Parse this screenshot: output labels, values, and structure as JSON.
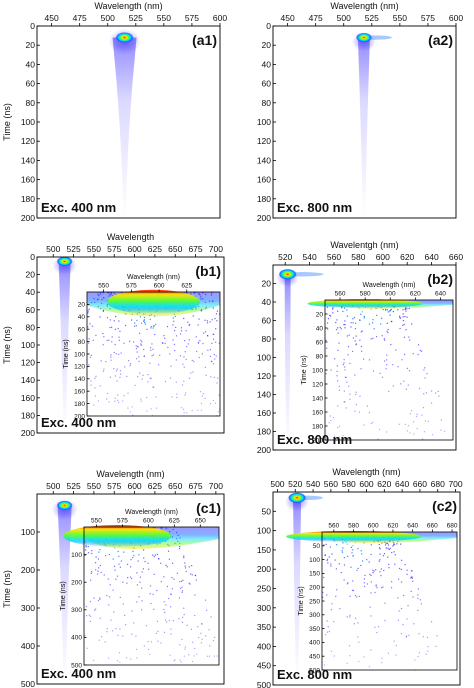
{
  "chart_data": [
    {
      "panel": "a1",
      "type": "heatmap",
      "xlabel": "Wavelength (nm)",
      "ylabel": "Time (ns)",
      "xticks": [
        450,
        475,
        500,
        525,
        550,
        575,
        600
      ],
      "xlim": [
        437,
        600
      ],
      "yticks": [
        0,
        20,
        40,
        60,
        80,
        100,
        120,
        140,
        160,
        180,
        200
      ],
      "ylim": [
        0,
        200
      ],
      "yinvert": true,
      "label": "(a1)",
      "excitation": "Exc. 400 nm",
      "peak": {
        "wavelength": 515,
        "time": 12
      },
      "tail_to_time": 200
    },
    {
      "panel": "a2",
      "type": "heatmap",
      "xlabel": "Wavelength (nm)",
      "ylabel": "",
      "xticks": [
        450,
        475,
        500,
        525,
        550,
        575,
        600
      ],
      "xlim": [
        437,
        600
      ],
      "yticks": [
        0,
        20,
        40,
        60,
        80,
        100,
        120,
        140,
        160,
        180,
        200
      ],
      "ylim": [
        0,
        200
      ],
      "yinvert": true,
      "label": "(a2)",
      "excitation": "Exc. 800 nm",
      "peak": {
        "wavelength": 518,
        "time": 12
      },
      "tail_to_time": 200
    },
    {
      "panel": "b1",
      "type": "heatmap",
      "xlabel": "Wavelength",
      "ylabel": "Time (ns)",
      "xticks": [
        500,
        525,
        550,
        575,
        600,
        625,
        650,
        675,
        700
      ],
      "xlim": [
        480,
        710
      ],
      "yticks": [
        0,
        20,
        40,
        60,
        80,
        100,
        120,
        140,
        160,
        180,
        200
      ],
      "ylim": [
        0,
        200
      ],
      "yinvert": true,
      "label": "(b1)",
      "excitation": "Exc. 400 nm",
      "peak": {
        "wavelength": 514,
        "time": 5
      },
      "inset": {
        "xlabel": "Wavelength (nm)",
        "ylabel": "Time (ns)",
        "xticks": [
          550,
          575,
          600,
          625
        ],
        "xlim": [
          535,
          655
        ],
        "yticks": [
          20,
          40,
          60,
          80,
          100,
          120,
          140,
          160,
          180,
          200
        ],
        "ylim": [
          0,
          200
        ],
        "hotspot": {
          "wavelength": 595,
          "time": 20
        }
      }
    },
    {
      "panel": "b2",
      "type": "heatmap",
      "xlabel": "Wavelentgh (nm)",
      "ylabel": "",
      "xticks": [
        520,
        540,
        560,
        580,
        600,
        620,
        640,
        660
      ],
      "xlim": [
        510,
        660
      ],
      "yticks": [
        20,
        40,
        60,
        80,
        100,
        120,
        140,
        160,
        180,
        200
      ],
      "ylim": [
        0,
        200
      ],
      "yinvert": true,
      "label": "(b2)",
      "excitation": "Exc. 800 nm",
      "peak": {
        "wavelength": 522,
        "time": 10
      },
      "inset": {
        "xlabel": "Wavelength (nm)",
        "ylabel": "Time (ns)",
        "xticks": [
          560,
          580,
          600,
          620,
          640
        ],
        "xlim": [
          548,
          650
        ],
        "yticks": [
          20,
          40,
          60,
          80,
          100,
          120,
          140,
          160,
          180,
          200
        ],
        "ylim": [
          0,
          200
        ],
        "hotspot": {
          "wavelength": 580,
          "time": 4
        }
      }
    },
    {
      "panel": "c1",
      "type": "heatmap",
      "xlabel": "Wavelength (nm)",
      "ylabel": "Time (ns)",
      "xticks": [
        500,
        525,
        550,
        575,
        600,
        625,
        650,
        675,
        700
      ],
      "xlim": [
        480,
        710
      ],
      "yticks": [
        100,
        200,
        300,
        400,
        500
      ],
      "ylim": [
        0,
        500
      ],
      "yinvert": true,
      "label": "(c1)",
      "excitation": "Exc. 400 nm",
      "peak": {
        "wavelength": 514,
        "time": 30
      },
      "inset": {
        "xlabel": "Wavelength (nm)",
        "ylabel": "Time (ns)",
        "xticks": [
          550,
          575,
          600,
          625,
          650
        ],
        "xlim": [
          538,
          668
        ],
        "yticks": [
          100,
          200,
          300,
          400,
          500
        ],
        "ylim": [
          0,
          500
        ],
        "hotspot": {
          "wavelength": 570,
          "time": 40
        }
      }
    },
    {
      "panel": "c2",
      "type": "heatmap",
      "xlabel": "Wavelength (nm)",
      "ylabel": "",
      "xticks": [
        500,
        520,
        540,
        560,
        580,
        600,
        620,
        640,
        660,
        680,
        700
      ],
      "xlim": [
        495,
        705
      ],
      "yticks": [
        50,
        100,
        150,
        200,
        250,
        300,
        350,
        400,
        450,
        500
      ],
      "ylim": [
        0,
        500
      ],
      "yinvert": true,
      "label": "(c2)",
      "excitation": "Exc. 800 nm",
      "peak": {
        "wavelength": 522,
        "time": 15
      },
      "inset": {
        "xlabel": "",
        "ylabel": "Time (ns)",
        "xticks": [
          560,
          580,
          600,
          620,
          640,
          660,
          680
        ],
        "xlim": [
          548,
          685
        ],
        "yticks": [
          50,
          100,
          150,
          200,
          250,
          300,
          350,
          400,
          450,
          500
        ],
        "ylim": [
          0,
          500
        ],
        "hotspot": {
          "wavelength": 580,
          "time": 12
        }
      }
    }
  ],
  "colors": {
    "violet": "#3a2bff",
    "blue": "#0064ff",
    "cyan": "#00d9ff",
    "green": "#5dff2b",
    "yellow": "#ffe600",
    "red": "#ff1a00"
  }
}
